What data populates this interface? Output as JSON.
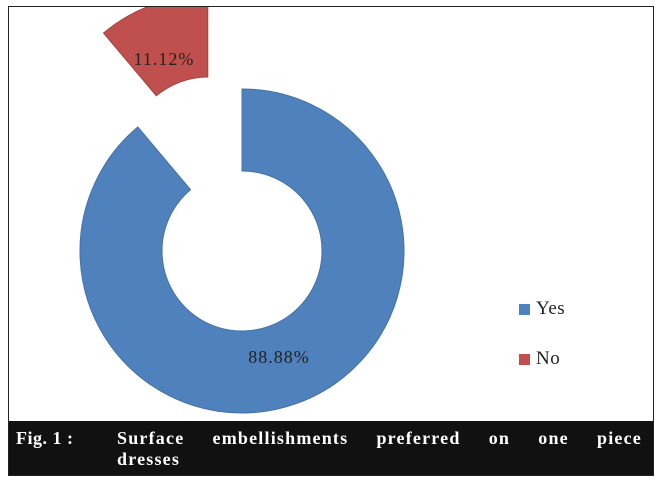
{
  "colors": {
    "yes": "#4F81BD",
    "no": "#C0504D"
  },
  "chart_data": {
    "type": "pie",
    "variant": "donut-exploded",
    "title": "",
    "categories": [
      "Yes",
      "No"
    ],
    "values": [
      88.88,
      11.12
    ],
    "data_labels": [
      "88.88%",
      "11.12%"
    ],
    "legend": {
      "placement": "right",
      "entries": [
        "Yes",
        "No"
      ]
    }
  },
  "caption": {
    "prefix": "Fig. 1 :",
    "text": "Surface embellishments preferred on one piece dresses"
  }
}
